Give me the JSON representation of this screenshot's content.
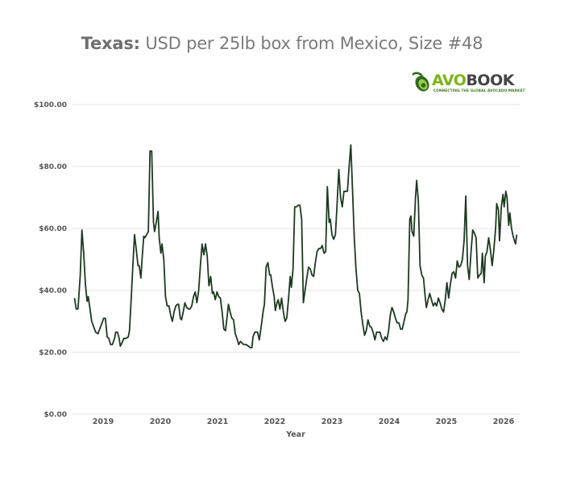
{
  "chart_data": {
    "type": "line",
    "title_bold": "Texas:",
    "title_rest": " USD per 25lb box from Mexico, Size #48",
    "xlabel": "Year",
    "ylabel": "",
    "ylim": [
      0,
      100
    ],
    "xlim": [
      2018.45,
      2026.35
    ],
    "grid": true,
    "legend": "none",
    "line_color": "#1c3a1f",
    "yticks": [
      {
        "value": 0,
        "label": "$0.00"
      },
      {
        "value": 20,
        "label": "$20.00"
      },
      {
        "value": 40,
        "label": "$40.00"
      },
      {
        "value": 60,
        "label": "$60.00"
      },
      {
        "value": 80,
        "label": "$80.00"
      },
      {
        "value": 100,
        "label": "$100.00"
      }
    ],
    "xticks": [
      {
        "value": 2019.0,
        "label": "2019"
      },
      {
        "value": 2020.0,
        "label": "2020"
      },
      {
        "value": 2021.0,
        "label": "2021"
      },
      {
        "value": 2022.0,
        "label": "2022"
      },
      {
        "value": 2023.0,
        "label": "2023"
      },
      {
        "value": 2024.0,
        "label": "2024"
      },
      {
        "value": 2025.0,
        "label": "2025"
      },
      {
        "value": 2026.0,
        "label": "2026"
      }
    ],
    "series": [
      {
        "name": "Texas Size #48",
        "points": [
          [
            2018.5,
            37.5
          ],
          [
            2018.53,
            34
          ],
          [
            2018.56,
            34
          ],
          [
            2018.6,
            45
          ],
          [
            2018.63,
            59.5
          ],
          [
            2018.66,
            52
          ],
          [
            2018.69,
            42
          ],
          [
            2018.72,
            36.5
          ],
          [
            2018.74,
            38
          ],
          [
            2018.77,
            34
          ],
          [
            2018.8,
            30
          ],
          [
            2018.84,
            28
          ],
          [
            2018.87,
            26.5
          ],
          [
            2018.91,
            26
          ],
          [
            2018.94,
            27.5
          ],
          [
            2018.97,
            29
          ],
          [
            2019.01,
            31
          ],
          [
            2019.04,
            31
          ],
          [
            2019.07,
            25
          ],
          [
            2019.1,
            24.5
          ],
          [
            2019.13,
            22.5
          ],
          [
            2019.16,
            22.5
          ],
          [
            2019.2,
            24.5
          ],
          [
            2019.22,
            26.5
          ],
          [
            2019.25,
            26.5
          ],
          [
            2019.28,
            24.5
          ],
          [
            2019.3,
            22
          ],
          [
            2019.33,
            23
          ],
          [
            2019.36,
            24.5
          ],
          [
            2019.4,
            24.5
          ],
          [
            2019.44,
            25
          ],
          [
            2019.46,
            27
          ],
          [
            2019.49,
            37
          ],
          [
            2019.52,
            48
          ],
          [
            2019.55,
            58
          ],
          [
            2019.58,
            53
          ],
          [
            2019.61,
            48
          ],
          [
            2019.63,
            48
          ],
          [
            2019.66,
            44
          ],
          [
            2019.68,
            50
          ],
          [
            2019.71,
            57.5
          ],
          [
            2019.73,
            57
          ],
          [
            2019.76,
            58
          ],
          [
            2019.79,
            59
          ],
          [
            2019.82,
            85
          ],
          [
            2019.85,
            85
          ],
          [
            2019.88,
            62
          ],
          [
            2019.9,
            59
          ],
          [
            2019.93,
            62
          ],
          [
            2019.96,
            65.5
          ],
          [
            2019.98,
            57
          ],
          [
            2020.01,
            52
          ],
          [
            2020.03,
            55
          ],
          [
            2020.06,
            50
          ],
          [
            2020.09,
            38
          ],
          [
            2020.12,
            35
          ],
          [
            2020.15,
            35
          ],
          [
            2020.18,
            32
          ],
          [
            2020.21,
            30
          ],
          [
            2020.24,
            33
          ],
          [
            2020.27,
            35
          ],
          [
            2020.3,
            35.5
          ],
          [
            2020.32,
            35.5
          ],
          [
            2020.35,
            31
          ],
          [
            2020.37,
            30.5
          ],
          [
            2020.4,
            33
          ],
          [
            2020.43,
            36
          ],
          [
            2020.46,
            34.5
          ],
          [
            2020.49,
            34
          ],
          [
            2020.52,
            34
          ],
          [
            2020.55,
            35
          ],
          [
            2020.58,
            38
          ],
          [
            2020.61,
            39.5
          ],
          [
            2020.64,
            36
          ],
          [
            2020.67,
            40
          ],
          [
            2020.7,
            48
          ],
          [
            2020.73,
            55
          ],
          [
            2020.76,
            51.5
          ],
          [
            2020.79,
            55
          ],
          [
            2020.82,
            51
          ],
          [
            2020.85,
            41.5
          ],
          [
            2020.88,
            44.5
          ],
          [
            2020.91,
            39
          ],
          [
            2020.93,
            39.5
          ],
          [
            2020.96,
            37
          ],
          [
            2020.99,
            39.5
          ],
          [
            2021.02,
            38
          ],
          [
            2021.05,
            37.5
          ],
          [
            2021.08,
            33
          ],
          [
            2021.11,
            27.5
          ],
          [
            2021.14,
            27
          ],
          [
            2021.17,
            32
          ],
          [
            2021.19,
            35.5
          ],
          [
            2021.22,
            33
          ],
          [
            2021.25,
            31
          ],
          [
            2021.28,
            30.5
          ],
          [
            2021.31,
            26
          ],
          [
            2021.34,
            24.5
          ],
          [
            2021.37,
            22.5
          ],
          [
            2021.4,
            23.5
          ],
          [
            2021.43,
            23
          ],
          [
            2021.46,
            22.5
          ],
          [
            2021.5,
            22.5
          ],
          [
            2021.54,
            22
          ],
          [
            2021.57,
            21.5
          ],
          [
            2021.6,
            21.5
          ],
          [
            2021.62,
            25
          ],
          [
            2021.65,
            26.5
          ],
          [
            2021.68,
            26.5
          ],
          [
            2021.7,
            26.5
          ],
          [
            2021.73,
            24
          ],
          [
            2021.76,
            28
          ],
          [
            2021.8,
            33.5
          ],
          [
            2021.82,
            35.5
          ],
          [
            2021.85,
            47.5
          ],
          [
            2021.88,
            49
          ],
          [
            2021.91,
            45
          ],
          [
            2021.93,
            45
          ],
          [
            2021.96,
            41
          ],
          [
            2021.99,
            38
          ],
          [
            2022.01,
            33.5
          ],
          [
            2022.04,
            36
          ],
          [
            2022.06,
            37
          ],
          [
            2022.09,
            34
          ],
          [
            2022.12,
            37.5
          ],
          [
            2022.15,
            33
          ],
          [
            2022.18,
            30
          ],
          [
            2022.21,
            31
          ],
          [
            2022.24,
            37
          ],
          [
            2022.27,
            44.5
          ],
          [
            2022.29,
            41
          ],
          [
            2022.32,
            47
          ],
          [
            2022.35,
            67
          ],
          [
            2022.38,
            67
          ],
          [
            2022.41,
            67.5
          ],
          [
            2022.44,
            67.5
          ],
          [
            2022.47,
            63
          ],
          [
            2022.5,
            36
          ],
          [
            2022.53,
            40
          ],
          [
            2022.56,
            44
          ],
          [
            2022.59,
            47.5
          ],
          [
            2022.62,
            47
          ],
          [
            2022.65,
            45
          ],
          [
            2022.68,
            44.5
          ],
          [
            2022.71,
            49
          ],
          [
            2022.74,
            52.5
          ],
          [
            2022.77,
            53.5
          ],
          [
            2022.8,
            53.5
          ],
          [
            2022.83,
            54.5
          ],
          [
            2022.86,
            52
          ],
          [
            2022.89,
            52.5
          ],
          [
            2022.92,
            73.5
          ],
          [
            2022.95,
            62
          ],
          [
            2022.97,
            63
          ],
          [
            2023.0,
            58
          ],
          [
            2023.03,
            56.5
          ],
          [
            2023.06,
            58
          ],
          [
            2023.09,
            68
          ],
          [
            2023.12,
            79
          ],
          [
            2023.15,
            70
          ],
          [
            2023.18,
            67
          ],
          [
            2023.21,
            72
          ],
          [
            2023.24,
            72
          ],
          [
            2023.27,
            72
          ],
          [
            2023.3,
            80
          ],
          [
            2023.33,
            87
          ],
          [
            2023.36,
            72
          ],
          [
            2023.39,
            57
          ],
          [
            2023.42,
            47
          ],
          [
            2023.45,
            40
          ],
          [
            2023.48,
            39
          ],
          [
            2023.51,
            33
          ],
          [
            2023.54,
            29
          ],
          [
            2023.57,
            25.5
          ],
          [
            2023.6,
            27
          ],
          [
            2023.63,
            30.5
          ],
          [
            2023.66,
            28.5
          ],
          [
            2023.69,
            28
          ],
          [
            2023.72,
            26.5
          ],
          [
            2023.75,
            24
          ],
          [
            2023.78,
            26.5
          ],
          [
            2023.81,
            26.5
          ],
          [
            2023.84,
            26.5
          ],
          [
            2023.87,
            24.5
          ],
          [
            2023.9,
            23.5
          ],
          [
            2023.93,
            25
          ],
          [
            2023.96,
            24
          ],
          [
            2023.99,
            27
          ],
          [
            2024.02,
            32
          ],
          [
            2024.05,
            34.5
          ],
          [
            2024.08,
            33
          ],
          [
            2024.11,
            31
          ],
          [
            2024.14,
            29.5
          ],
          [
            2024.17,
            29.5
          ],
          [
            2024.2,
            27.5
          ],
          [
            2024.23,
            27.5
          ],
          [
            2024.26,
            30
          ],
          [
            2024.29,
            32.5
          ],
          [
            2024.31,
            33
          ],
          [
            2024.33,
            37
          ],
          [
            2024.36,
            63
          ],
          [
            2024.38,
            64
          ],
          [
            2024.4,
            59
          ],
          [
            2024.43,
            57.5
          ],
          [
            2024.46,
            70
          ],
          [
            2024.48,
            75.5
          ],
          [
            2024.51,
            69
          ],
          [
            2024.54,
            48
          ],
          [
            2024.57,
            45
          ],
          [
            2024.6,
            44
          ],
          [
            2024.63,
            38
          ],
          [
            2024.65,
            34.5
          ],
          [
            2024.68,
            37
          ],
          [
            2024.71,
            39
          ],
          [
            2024.74,
            37
          ],
          [
            2024.77,
            35
          ],
          [
            2024.8,
            36
          ],
          [
            2024.83,
            35
          ],
          [
            2024.86,
            37.5
          ],
          [
            2024.89,
            36
          ],
          [
            2024.92,
            34
          ],
          [
            2024.95,
            33
          ],
          [
            2024.98,
            37
          ],
          [
            2025.01,
            42.5
          ],
          [
            2025.04,
            37.5
          ],
          [
            2025.07,
            42
          ],
          [
            2025.1,
            45.5
          ],
          [
            2025.13,
            46
          ],
          [
            2025.16,
            44
          ],
          [
            2025.19,
            49.5
          ],
          [
            2025.22,
            47.5
          ],
          [
            2025.25,
            48
          ],
          [
            2025.28,
            50
          ],
          [
            2025.31,
            56
          ],
          [
            2025.34,
            70.5
          ],
          [
            2025.37,
            48
          ],
          [
            2025.4,
            43.5
          ],
          [
            2025.43,
            52
          ],
          [
            2025.46,
            59.5
          ],
          [
            2025.49,
            58.5
          ],
          [
            2025.52,
            57
          ],
          [
            2025.55,
            44
          ],
          [
            2025.58,
            45
          ],
          [
            2025.61,
            45.5
          ],
          [
            2025.63,
            52
          ],
          [
            2025.66,
            42.5
          ],
          [
            2025.68,
            51
          ],
          [
            2025.71,
            52.5
          ],
          [
            2025.74,
            57
          ],
          [
            2025.77,
            53
          ],
          [
            2025.8,
            48
          ],
          [
            2025.83,
            53
          ],
          [
            2025.86,
            60
          ],
          [
            2025.88,
            68
          ],
          [
            2025.91,
            66
          ],
          [
            2025.93,
            56
          ],
          [
            2025.96,
            67
          ],
          [
            2025.99,
            71
          ],
          [
            2026.01,
            67
          ],
          [
            2026.04,
            72
          ],
          [
            2026.06,
            70
          ],
          [
            2026.09,
            61
          ],
          [
            2026.11,
            65
          ],
          [
            2026.14,
            60
          ],
          [
            2026.16,
            58
          ],
          [
            2026.19,
            56
          ],
          [
            2026.21,
            55
          ],
          [
            2026.23,
            58
          ]
        ]
      }
    ]
  },
  "logo": {
    "part1": "AVO",
    "part2": "BOOK",
    "tagline": "CONNECTING THE GLOBAL AVOCADO MARKET"
  }
}
